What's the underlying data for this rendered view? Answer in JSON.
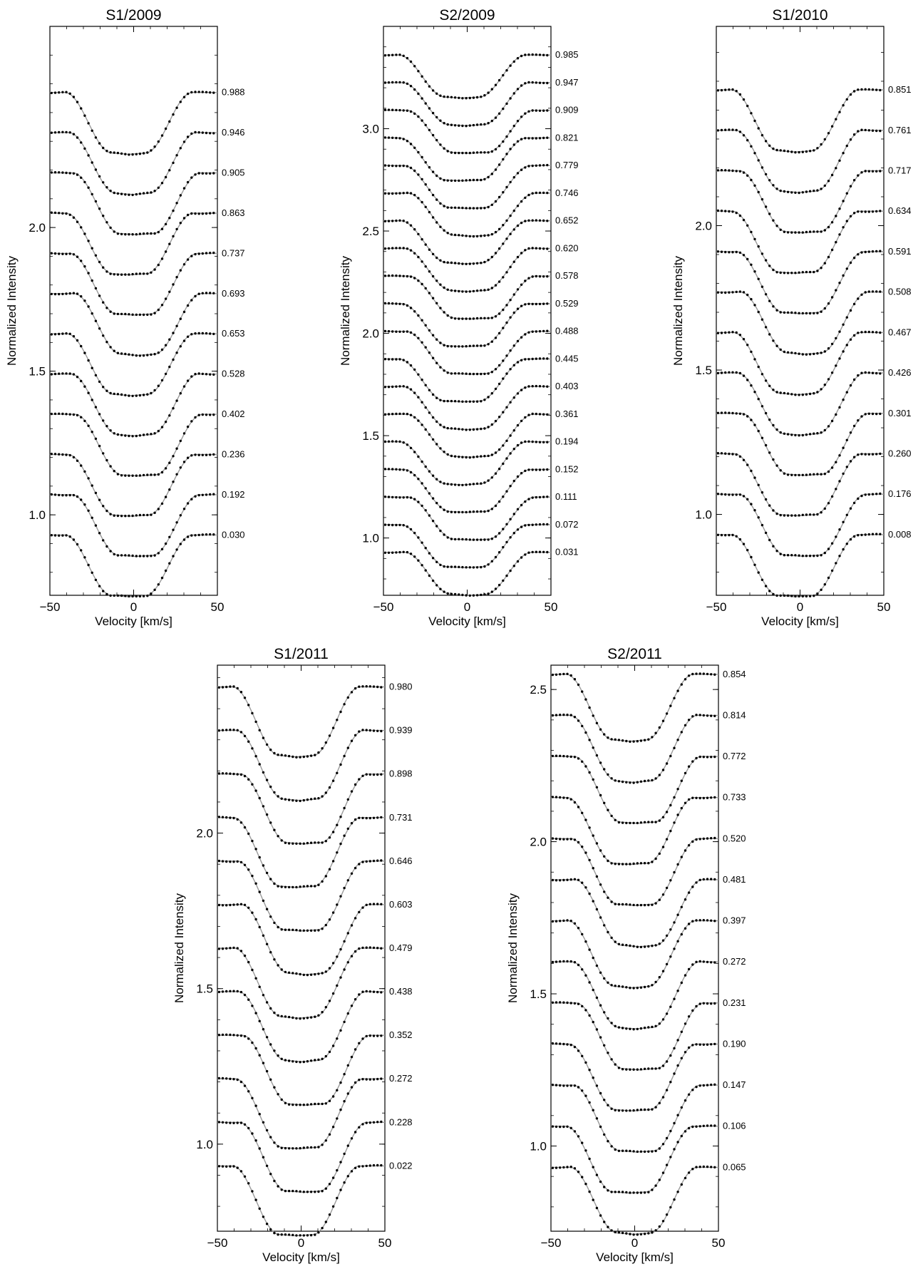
{
  "chart_data": [
    {
      "type": "line",
      "title": "S1/2009",
      "xlabel": "Velocity [km/s]",
      "ylabel": "Normalized Intensity",
      "xlim": [
        -50,
        50
      ],
      "ylim": [
        0.72,
        2.7
      ],
      "xticks": [
        -50,
        0,
        50
      ],
      "yticks": [
        1.0,
        1.5,
        2.0
      ],
      "offset_step": 0.14,
      "continuum_first": 0.93,
      "series_note": "dots = observed profile, line = model fit",
      "phases": [
        "0.988",
        "0.946",
        "0.905",
        "0.863",
        "0.737",
        "0.693",
        "0.653",
        "0.528",
        "0.402",
        "0.236",
        "0.192",
        "0.030"
      ],
      "depth": 0.215
    },
    {
      "type": "line",
      "title": "S2/2009",
      "xlabel": "Velocity [km/s]",
      "ylabel": "Normalized Intensity",
      "xlim": [
        -50,
        50
      ],
      "ylim": [
        0.72,
        3.5
      ],
      "xticks": [
        -50,
        0,
        50
      ],
      "yticks": [
        1.0,
        1.5,
        2.0,
        2.5,
        3.0
      ],
      "offset_step": 0.135,
      "continuum_first": 0.93,
      "series_note": "dots = observed profile, line = model fit",
      "phases": [
        "0.985",
        "0.947",
        "0.909",
        "0.821",
        "0.779",
        "0.746",
        "0.652",
        "0.620",
        "0.578",
        "0.529",
        "0.488",
        "0.445",
        "0.403",
        "0.361",
        "0.194",
        "0.152",
        "0.111",
        "0.072",
        "0.031"
      ],
      "depth": 0.21
    },
    {
      "type": "line",
      "title": "S1/2010",
      "xlabel": "Velocity [km/s]",
      "ylabel": "Normalized Intensity",
      "xlim": [
        -50,
        50
      ],
      "ylim": [
        0.72,
        2.69
      ],
      "xticks": [
        -50,
        0,
        50
      ],
      "yticks": [
        1.0,
        1.5,
        2.0
      ],
      "offset_step": 0.14,
      "continuum_first": 0.93,
      "series_note": "dots = observed profile, line = model fit",
      "phases": [
        "0.851",
        "0.761",
        "0.717",
        "0.634",
        "0.591",
        "0.508",
        "0.467",
        "0.426",
        "0.301",
        "0.260",
        "0.176",
        "0.008"
      ],
      "depth": 0.215
    },
    {
      "type": "line",
      "title": "S1/2011",
      "xlabel": "Velocity [km/s]",
      "ylabel": "Normalized Intensity",
      "xlim": [
        -50,
        50
      ],
      "ylim": [
        0.72,
        2.54
      ],
      "xticks": [
        -50,
        0,
        50
      ],
      "yticks": [
        1.0,
        1.5,
        2.0
      ],
      "offset_step": 0.14,
      "continuum_first": 0.93,
      "series_note": "dots = observed profile, line = model fit",
      "phases": [
        "0.980",
        "0.939",
        "0.898",
        "0.731",
        "0.646",
        "0.603",
        "0.479",
        "0.438",
        "0.352",
        "0.272",
        "0.228",
        "0.022"
      ],
      "depth": 0.225
    },
    {
      "type": "line",
      "title": "S2/2011",
      "xlabel": "Velocity [km/s]",
      "ylabel": "Normalized Intensity",
      "xlim": [
        -50,
        50
      ],
      "ylim": [
        0.72,
        2.58
      ],
      "xticks": [
        -50,
        0,
        50
      ],
      "yticks": [
        1.0,
        1.5,
        2.0,
        2.5
      ],
      "offset_step": 0.135,
      "continuum_first": 0.93,
      "series_note": "dots = observed profile, line = model fit",
      "phases": [
        "0.854",
        "0.814",
        "0.772",
        "0.733",
        "0.520",
        "0.481",
        "0.397",
        "0.272",
        "0.231",
        "0.190",
        "0.147",
        "0.106",
        "0.065"
      ],
      "depth": 0.22
    }
  ]
}
